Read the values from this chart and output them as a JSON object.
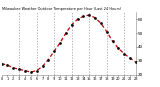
{
  "title": "Milwaukee Weather Outdoor Temperature per Hour (Last 24 Hours)",
  "hours": [
    0,
    1,
    2,
    3,
    4,
    5,
    6,
    7,
    8,
    9,
    10,
    11,
    12,
    13,
    14,
    15,
    16,
    17,
    18,
    19,
    20,
    21,
    22,
    23
  ],
  "temps": [
    28,
    27,
    25,
    24,
    23,
    22,
    23,
    26,
    31,
    37,
    43,
    50,
    56,
    60,
    62,
    63,
    61,
    57,
    51,
    44,
    39,
    35,
    32,
    29
  ],
  "line_color": "#cc0000",
  "marker_color": "#111111",
  "bg_color": "#ffffff",
  "grid_color": "#999999",
  "text_color": "#000000",
  "ylim_min": 20,
  "ylim_max": 65,
  "yticks": [
    20,
    30,
    40,
    50,
    60
  ],
  "xlim_min": 0,
  "xlim_max": 23,
  "vgrid_hours": [
    3,
    6,
    9,
    12,
    15,
    18,
    21
  ]
}
